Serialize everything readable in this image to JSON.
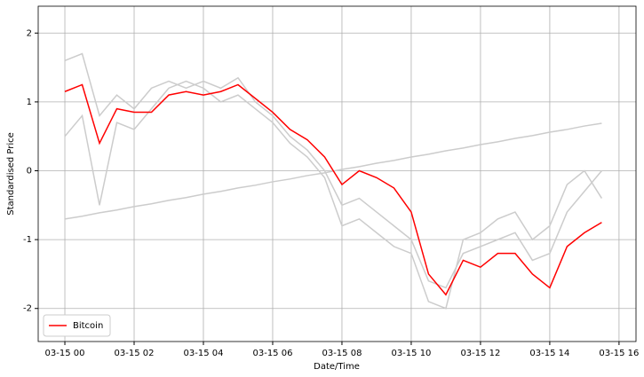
{
  "chart_data": {
    "type": "line",
    "x_label": "Date/Time",
    "y_label": "Standardised Price",
    "x": [
      0,
      0.5,
      1,
      1.5,
      2,
      2.5,
      3,
      3.5,
      4,
      4.5,
      5,
      5.5,
      6,
      6.5,
      7,
      7.5,
      8,
      8.5,
      9,
      9.5,
      10,
      10.5,
      11,
      11.5,
      12,
      12.5,
      13,
      13.5,
      14,
      14.5,
      15,
      15.5
    ],
    "series": [
      {
        "color": "#cccccc",
        "values": [
          1.6,
          1.7,
          0.8,
          1.1,
          0.9,
          1.2,
          1.3,
          1.2,
          1.3,
          1.2,
          1.35,
          1.0,
          0.8,
          0.5,
          0.3,
          0.0,
          -0.5,
          -0.4,
          -0.6,
          -0.8,
          -1.0,
          -1.6,
          -1.7,
          -1.2,
          -1.1,
          -1.0,
          -0.9,
          -1.3,
          -1.2,
          -0.6,
          -0.3,
          0.0
        ]
      },
      {
        "color": "#cccccc",
        "values": [
          0.5,
          0.8,
          -0.5,
          0.7,
          0.6,
          0.9,
          1.2,
          1.3,
          1.2,
          1.0,
          1.1,
          0.9,
          0.7,
          0.4,
          0.2,
          -0.1,
          -0.8,
          -0.7,
          -0.9,
          -1.1,
          -1.2,
          -1.9,
          -2.0,
          -1.0,
          -0.9,
          -0.7,
          -0.6,
          -1.0,
          -0.8,
          -0.2,
          0.0,
          -0.4
        ]
      },
      {
        "color": "#cccccc",
        "values": [
          -0.7,
          -0.66,
          -0.61,
          -0.57,
          -0.52,
          -0.48,
          -0.43,
          -0.39,
          -0.34,
          -0.3,
          -0.25,
          -0.21,
          -0.16,
          -0.12,
          -0.07,
          -0.03,
          0.02,
          0.06,
          0.11,
          0.15,
          0.2,
          0.24,
          0.29,
          0.33,
          0.38,
          0.42,
          0.47,
          0.51,
          0.56,
          0.6,
          0.65,
          0.69
        ]
      },
      {
        "name": "Bitcoin",
        "color": "#ff0000",
        "values": [
          1.15,
          1.25,
          0.4,
          0.9,
          0.85,
          0.85,
          1.1,
          1.15,
          1.1,
          1.15,
          1.25,
          1.05,
          0.85,
          0.6,
          0.45,
          0.2,
          -0.2,
          0.0,
          -0.1,
          -0.25,
          -0.6,
          -1.5,
          -1.8,
          -1.3,
          -1.4,
          -1.2,
          -1.2,
          -1.5,
          -1.7,
          -1.1,
          -0.9,
          -0.75
        ]
      }
    ],
    "xlim": [
      -0.77,
      16.49
    ],
    "xticks": [
      {
        "value": 0,
        "label": "03-15 00"
      },
      {
        "value": 2,
        "label": "03-15 02"
      },
      {
        "value": 4,
        "label": "03-15 04"
      },
      {
        "value": 6,
        "label": "03-15 06"
      },
      {
        "value": 8,
        "label": "03-15 08"
      },
      {
        "value": 10,
        "label": "03-15 10"
      },
      {
        "value": 12,
        "label": "03-15 12"
      },
      {
        "value": 14,
        "label": "03-15 14"
      },
      {
        "value": 16,
        "label": "03-15 16"
      }
    ],
    "ylim": [
      -2.48,
      2.39
    ],
    "yticks": [
      -2,
      -1,
      0,
      1,
      2
    ],
    "grid": true,
    "legend": "lower left"
  }
}
